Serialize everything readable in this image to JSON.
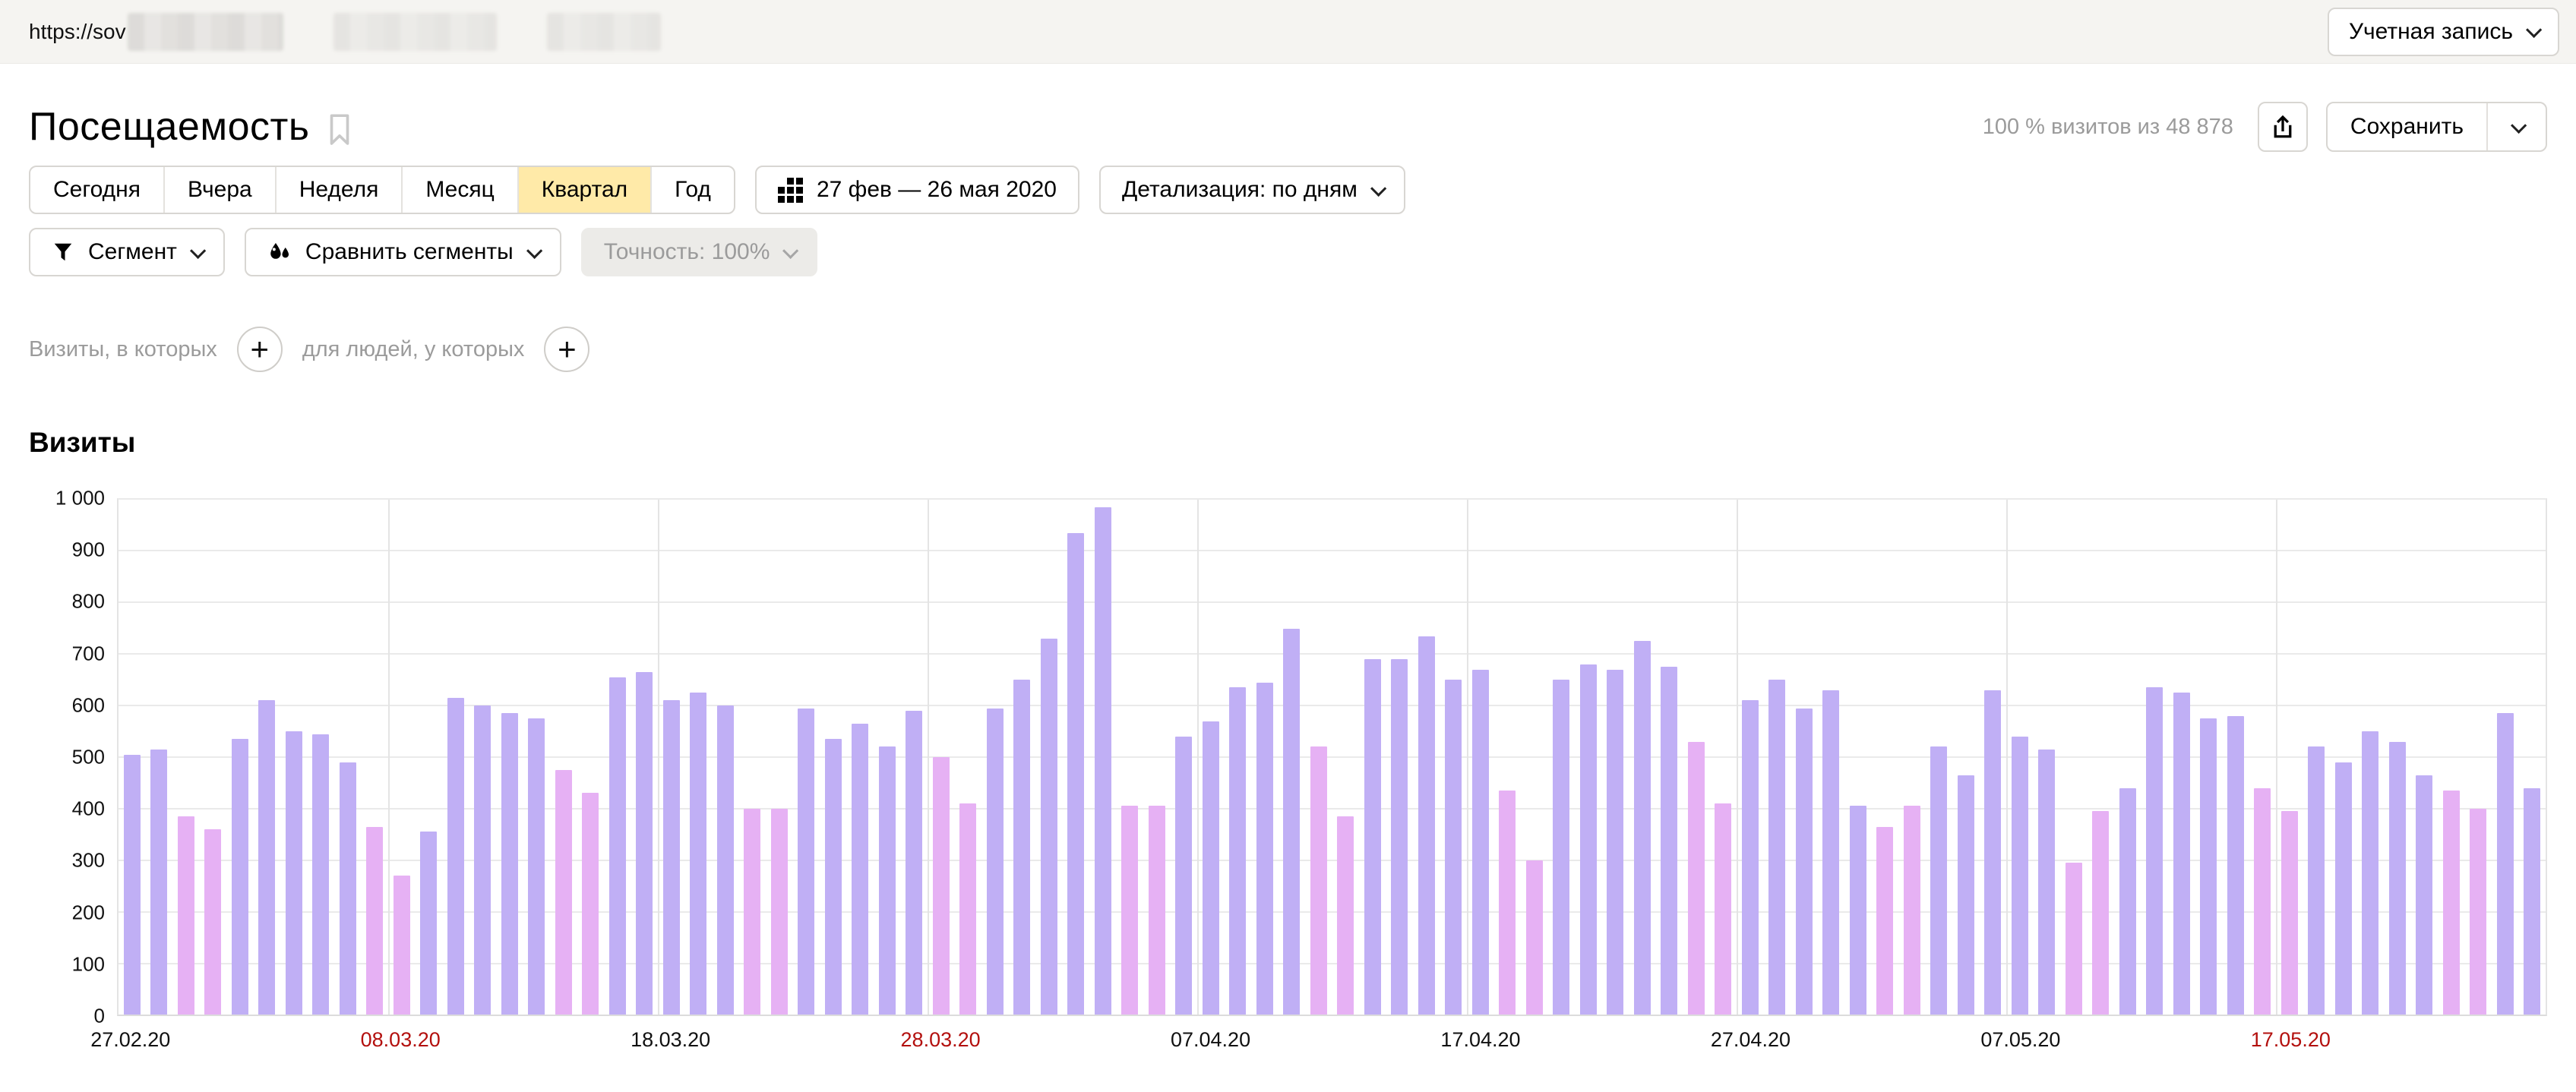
{
  "topbar": {
    "url_prefix": "https://sov",
    "account_label": "Учетная запись"
  },
  "header": {
    "title": "Посещаемость",
    "stats": "100 % визитов из 48 878",
    "save_label": "Сохранить"
  },
  "period_tabs": {
    "items": [
      "Сегодня",
      "Вчера",
      "Неделя",
      "Месяц",
      "Квартал",
      "Год"
    ],
    "selected": "Квартал"
  },
  "toolbar": {
    "date_range": "27 фев — 26 мая 2020",
    "detail_label": "Детализация: по дням",
    "segment_label": "Сегмент",
    "compare_label": "Сравнить сегменты",
    "accuracy_label": "Точность: 100%"
  },
  "conditions": {
    "visits_label": "Визиты, в которых",
    "people_label": "для людей, у которых",
    "plus_label": "+"
  },
  "chart_heading": "Визиты",
  "chart_data": {
    "type": "bar",
    "title": "Визиты",
    "xlabel": "",
    "ylabel": "",
    "ylim": [
      0,
      1000
    ],
    "grid": true,
    "ytick_labels": [
      "0",
      "100",
      "200",
      "300",
      "400",
      "500",
      "600",
      "700",
      "800",
      "900",
      "1 000"
    ],
    "x_tick_every": 10,
    "x_tick_labels": [
      {
        "label": "27.02.20",
        "red": false
      },
      {
        "label": "08.03.20",
        "red": true
      },
      {
        "label": "18.03.20",
        "red": false
      },
      {
        "label": "28.03.20",
        "red": true
      },
      {
        "label": "07.04.20",
        "red": false
      },
      {
        "label": "17.04.20",
        "red": false
      },
      {
        "label": "27.04.20",
        "red": false
      },
      {
        "label": "07.05.20",
        "red": false
      },
      {
        "label": "17.05.20",
        "red": true
      }
    ],
    "dates": [
      "27.02.20",
      "28.02.20",
      "29.02.20",
      "01.03.20",
      "02.03.20",
      "03.03.20",
      "04.03.20",
      "05.03.20",
      "06.03.20",
      "07.03.20",
      "08.03.20",
      "09.03.20",
      "10.03.20",
      "11.03.20",
      "12.03.20",
      "13.03.20",
      "14.03.20",
      "15.03.20",
      "16.03.20",
      "17.03.20",
      "18.03.20",
      "19.03.20",
      "20.03.20",
      "21.03.20",
      "22.03.20",
      "23.03.20",
      "24.03.20",
      "25.03.20",
      "26.03.20",
      "27.03.20",
      "28.03.20",
      "29.03.20",
      "30.03.20",
      "31.03.20",
      "01.04.20",
      "02.04.20",
      "03.04.20",
      "04.04.20",
      "05.04.20",
      "06.04.20",
      "07.04.20",
      "08.04.20",
      "09.04.20",
      "10.04.20",
      "11.04.20",
      "12.04.20",
      "13.04.20",
      "14.04.20",
      "15.04.20",
      "16.04.20",
      "17.04.20",
      "18.04.20",
      "19.04.20",
      "20.04.20",
      "21.04.20",
      "22.04.20",
      "23.04.20",
      "24.04.20",
      "25.04.20",
      "26.04.20",
      "27.04.20",
      "28.04.20",
      "29.04.20",
      "30.04.20",
      "01.05.20",
      "02.05.20",
      "03.05.20",
      "04.05.20",
      "05.05.20",
      "06.05.20",
      "07.05.20",
      "08.05.20",
      "09.05.20",
      "10.05.20",
      "11.05.20",
      "12.05.20",
      "13.05.20",
      "14.05.20",
      "15.05.20",
      "16.05.20",
      "17.05.20",
      "18.05.20",
      "19.05.20",
      "20.05.20",
      "21.05.20",
      "22.05.20",
      "23.05.20",
      "24.05.20",
      "25.05.20",
      "26.05.20"
    ],
    "values": [
      505,
      515,
      385,
      360,
      535,
      610,
      550,
      545,
      490,
      365,
      270,
      355,
      615,
      600,
      585,
      575,
      475,
      430,
      655,
      665,
      610,
      625,
      600,
      400,
      400,
      595,
      535,
      565,
      520,
      590,
      500,
      410,
      595,
      650,
      730,
      935,
      985,
      405,
      405,
      540,
      570,
      635,
      645,
      750,
      520,
      385,
      690,
      690,
      735,
      650,
      670,
      435,
      300,
      650,
      680,
      670,
      725,
      675,
      530,
      410,
      610,
      650,
      595,
      630,
      405,
      365,
      405,
      520,
      465,
      630,
      540,
      515,
      295,
      395,
      440,
      635,
      625,
      575,
      580,
      440,
      395,
      520,
      490,
      550,
      530,
      465,
      435,
      400,
      585,
      440
    ],
    "weekend": [
      0,
      0,
      1,
      1,
      0,
      0,
      0,
      0,
      0,
      1,
      1,
      0,
      0,
      0,
      0,
      0,
      1,
      1,
      0,
      0,
      0,
      0,
      0,
      1,
      1,
      0,
      0,
      0,
      0,
      0,
      1,
      1,
      0,
      0,
      0,
      0,
      0,
      1,
      1,
      0,
      0,
      0,
      0,
      0,
      1,
      1,
      0,
      0,
      0,
      0,
      0,
      1,
      1,
      0,
      0,
      0,
      0,
      0,
      1,
      1,
      0,
      0,
      0,
      0,
      0,
      1,
      1,
      0,
      0,
      0,
      0,
      0,
      1,
      1,
      0,
      0,
      0,
      0,
      0,
      1,
      1,
      0,
      0,
      0,
      0,
      0,
      1,
      1,
      0,
      0
    ],
    "colors": {
      "weekday_bar": "#c0aff5",
      "weekend_bar": "#e6b1f4",
      "red_label": "#b3100e",
      "selected_tab": "#ffeaa8"
    },
    "legend": null
  }
}
